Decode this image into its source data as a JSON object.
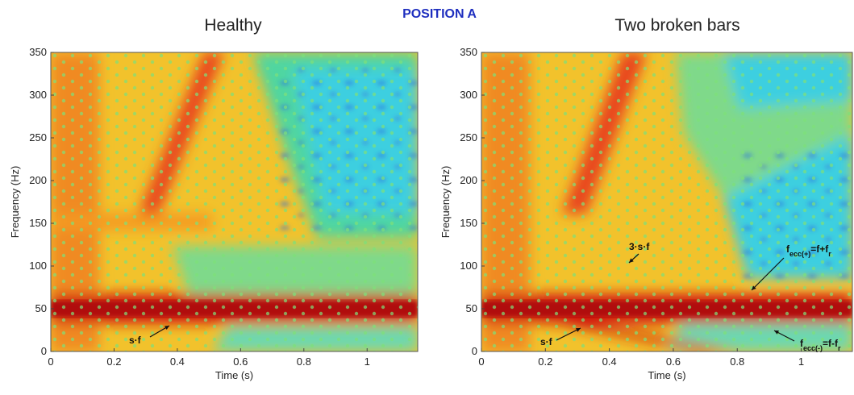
{
  "header": {
    "title": "POSITION A"
  },
  "chart_data": [
    {
      "type": "spectrogram",
      "title": "Healthy",
      "xlabel": "Time (s)",
      "ylabel": "Frequency (Hz)",
      "xlim": [
        0,
        1.16
      ],
      "ylim": [
        0,
        350
      ],
      "xticks": [
        0,
        0.2,
        0.4,
        0.6,
        0.8,
        1
      ],
      "yticks": [
        0,
        50,
        100,
        150,
        200,
        250,
        300,
        350
      ],
      "annotations": [
        [
          "s·f"
        ]
      ]
    },
    {
      "type": "spectrogram",
      "title": "Two broken bars",
      "xlabel": "Time (s)",
      "ylabel": "Frequency (Hz)",
      "xlim": [
        0,
        1.16
      ],
      "ylim": [
        0,
        350
      ],
      "xticks": [
        0,
        0.2,
        0.4,
        0.6,
        0.8,
        1
      ],
      "yticks": [
        0,
        50,
        100,
        150,
        200,
        250,
        300,
        350
      ],
      "annotations": [
        [
          "3·s·f"
        ],
        [
          "s·f"
        ],
        [
          "f",
          "ecc(+)",
          "=f+f",
          "r"
        ],
        [
          "f",
          "ecc(-)",
          "=f-f",
          "r"
        ]
      ]
    }
  ]
}
